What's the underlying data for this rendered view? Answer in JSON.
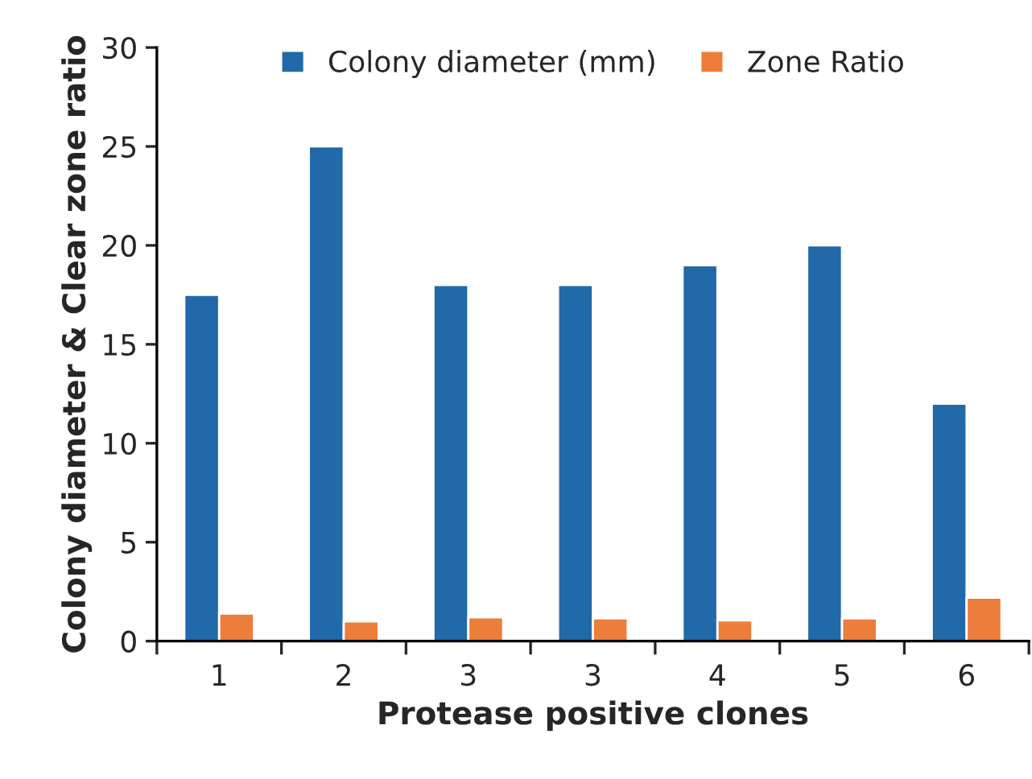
{
  "chart_data": {
    "type": "bar",
    "xlabel": "Protease positive clones",
    "ylabel": "Colony diameter & Clear zone ratio",
    "categories": [
      "1",
      "2",
      "3",
      "3",
      "4",
      "5",
      "6"
    ],
    "series": [
      {
        "name": "Colony diameter (mm)",
        "color": "#2169a9",
        "values": [
          17.5,
          25,
          18,
          18,
          19,
          20,
          12
        ]
      },
      {
        "name": "Zone Ratio",
        "color": "#ed7d3b",
        "values": [
          1.4,
          1.0,
          1.2,
          1.15,
          1.05,
          1.15,
          2.2
        ]
      }
    ],
    "ylim": [
      0,
      30
    ],
    "yticks": [
      0,
      5,
      10,
      15,
      20,
      25,
      30
    ],
    "grid": false,
    "legend": "top"
  }
}
